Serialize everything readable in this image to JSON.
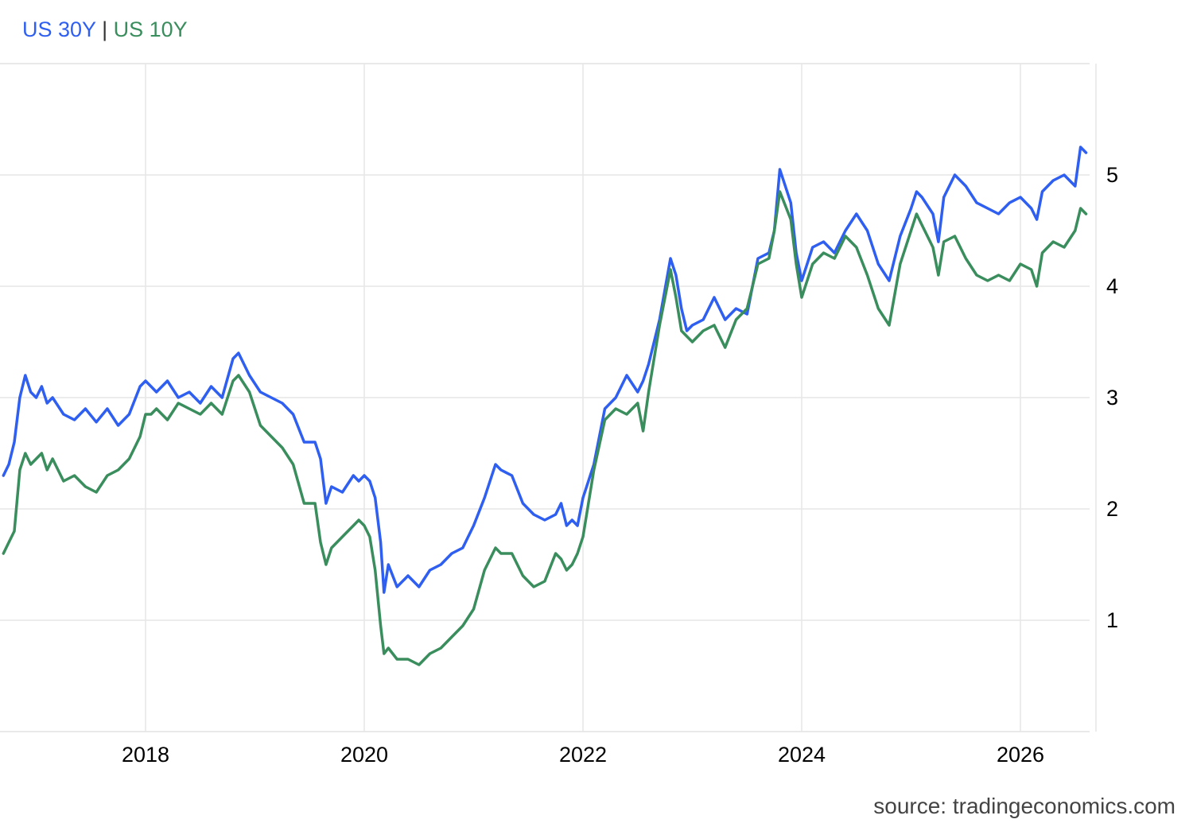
{
  "legend": {
    "series1": "US 30Y",
    "separator": "|",
    "series2": "US 10Y"
  },
  "source": "source: tradingeconomics.com",
  "colors": {
    "us30y": "#2f5ff1",
    "us10y": "#3a8d5c",
    "grid": "#e6e6e6",
    "text": "#000000"
  },
  "chart_data": {
    "type": "line",
    "xlabel": "",
    "ylabel": "",
    "xlim": [
      2016.7,
      2026.7
    ],
    "ylim": [
      0.0,
      6.0
    ],
    "x_ticks": [
      "2018",
      "2020",
      "2022",
      "2024",
      "2026"
    ],
    "y_ticks": [
      "1",
      "2",
      "3",
      "4",
      "5"
    ],
    "grid": true,
    "legend_position": "top-left",
    "series": [
      {
        "name": "US 30Y",
        "x": [
          2016.7,
          2016.75,
          2016.8,
          2016.85,
          2016.9,
          2016.95,
          2017.0,
          2017.05,
          2017.1,
          2017.15,
          2017.25,
          2017.35,
          2017.45,
          2017.55,
          2017.65,
          2017.75,
          2017.85,
          2017.95,
          2018.0,
          2018.05,
          2018.1,
          2018.2,
          2018.3,
          2018.4,
          2018.5,
          2018.6,
          2018.7,
          2018.8,
          2018.85,
          2018.95,
          2019.05,
          2019.15,
          2019.25,
          2019.35,
          2019.45,
          2019.55,
          2019.6,
          2019.65,
          2019.7,
          2019.8,
          2019.9,
          2019.95,
          2020.0,
          2020.05,
          2020.1,
          2020.15,
          2020.18,
          2020.22,
          2020.3,
          2020.4,
          2020.5,
          2020.6,
          2020.7,
          2020.8,
          2020.9,
          2021.0,
          2021.1,
          2021.2,
          2021.25,
          2021.35,
          2021.45,
          2021.55,
          2021.65,
          2021.75,
          2021.8,
          2021.85,
          2021.9,
          2021.95,
          2022.0,
          2022.1,
          2022.2,
          2022.3,
          2022.4,
          2022.5,
          2022.55,
          2022.6,
          2022.7,
          2022.8,
          2022.85,
          2022.9,
          2022.95,
          2023.0,
          2023.1,
          2023.2,
          2023.3,
          2023.4,
          2023.5,
          2023.6,
          2023.7,
          2023.75,
          2023.8,
          2023.9,
          2023.95,
          2024.0,
          2024.1,
          2024.2,
          2024.3,
          2024.4,
          2024.5,
          2024.6,
          2024.7,
          2024.8,
          2024.9,
          2025.0,
          2025.05,
          2025.1,
          2025.2,
          2025.25,
          2025.3,
          2025.4,
          2025.5,
          2025.6,
          2025.7,
          2025.8,
          2025.9,
          2026.0,
          2026.1,
          2026.15,
          2026.2,
          2026.3,
          2026.4,
          2026.5,
          2026.55,
          2026.6
        ],
        "values": [
          2.3,
          2.4,
          2.6,
          3.0,
          3.2,
          3.05,
          3.0,
          3.1,
          2.95,
          3.0,
          2.85,
          2.8,
          2.9,
          2.78,
          2.9,
          2.75,
          2.85,
          3.1,
          3.15,
          3.1,
          3.05,
          3.15,
          3.0,
          3.05,
          2.95,
          3.1,
          3.0,
          3.35,
          3.4,
          3.2,
          3.05,
          3.0,
          2.95,
          2.85,
          2.6,
          2.6,
          2.45,
          2.05,
          2.2,
          2.15,
          2.3,
          2.25,
          2.3,
          2.25,
          2.1,
          1.7,
          1.25,
          1.5,
          1.3,
          1.4,
          1.3,
          1.45,
          1.5,
          1.6,
          1.65,
          1.85,
          2.1,
          2.4,
          2.35,
          2.3,
          2.05,
          1.95,
          1.9,
          1.95,
          2.05,
          1.85,
          1.9,
          1.85,
          2.1,
          2.4,
          2.9,
          3.0,
          3.2,
          3.05,
          3.15,
          3.3,
          3.7,
          4.25,
          4.1,
          3.8,
          3.6,
          3.65,
          3.7,
          3.9,
          3.7,
          3.8,
          3.75,
          4.25,
          4.3,
          4.5,
          5.05,
          4.75,
          4.3,
          4.05,
          4.35,
          4.4,
          4.3,
          4.5,
          4.65,
          4.5,
          4.2,
          4.05,
          4.45,
          4.7,
          4.85,
          4.8,
          4.65,
          4.4,
          4.8,
          5.0,
          4.9,
          4.75,
          4.7,
          4.65,
          4.75,
          4.8,
          4.7,
          4.6,
          4.85,
          4.95,
          5.0,
          4.9,
          5.25,
          5.2
        ]
      },
      {
        "name": "US 10Y",
        "x": [
          2016.7,
          2016.75,
          2016.8,
          2016.85,
          2016.9,
          2016.95,
          2017.0,
          2017.05,
          2017.1,
          2017.15,
          2017.25,
          2017.35,
          2017.45,
          2017.55,
          2017.65,
          2017.75,
          2017.85,
          2017.95,
          2018.0,
          2018.05,
          2018.1,
          2018.2,
          2018.3,
          2018.4,
          2018.5,
          2018.6,
          2018.7,
          2018.8,
          2018.85,
          2018.95,
          2019.05,
          2019.15,
          2019.25,
          2019.35,
          2019.45,
          2019.55,
          2019.6,
          2019.65,
          2019.7,
          2019.8,
          2019.9,
          2019.95,
          2020.0,
          2020.05,
          2020.1,
          2020.15,
          2020.18,
          2020.22,
          2020.3,
          2020.4,
          2020.5,
          2020.6,
          2020.7,
          2020.8,
          2020.9,
          2021.0,
          2021.1,
          2021.2,
          2021.25,
          2021.35,
          2021.45,
          2021.55,
          2021.65,
          2021.75,
          2021.8,
          2021.85,
          2021.9,
          2021.95,
          2022.0,
          2022.1,
          2022.2,
          2022.3,
          2022.4,
          2022.5,
          2022.55,
          2022.6,
          2022.7,
          2022.8,
          2022.85,
          2022.9,
          2022.95,
          2023.0,
          2023.1,
          2023.2,
          2023.3,
          2023.4,
          2023.5,
          2023.6,
          2023.7,
          2023.75,
          2023.8,
          2023.9,
          2023.95,
          2024.0,
          2024.1,
          2024.2,
          2024.3,
          2024.4,
          2024.5,
          2024.6,
          2024.7,
          2024.8,
          2024.9,
          2025.0,
          2025.05,
          2025.1,
          2025.2,
          2025.25,
          2025.3,
          2025.4,
          2025.5,
          2025.6,
          2025.7,
          2025.8,
          2025.9,
          2026.0,
          2026.1,
          2026.15,
          2026.2,
          2026.3,
          2026.4,
          2026.5,
          2026.55,
          2026.6
        ],
        "values": [
          1.6,
          1.7,
          1.8,
          2.35,
          2.5,
          2.4,
          2.45,
          2.5,
          2.35,
          2.45,
          2.25,
          2.3,
          2.2,
          2.15,
          2.3,
          2.35,
          2.45,
          2.65,
          2.85,
          2.85,
          2.9,
          2.8,
          2.95,
          2.9,
          2.85,
          2.95,
          2.85,
          3.15,
          3.2,
          3.05,
          2.75,
          2.65,
          2.55,
          2.4,
          2.05,
          2.05,
          1.7,
          1.5,
          1.65,
          1.75,
          1.85,
          1.9,
          1.85,
          1.75,
          1.45,
          0.95,
          0.7,
          0.75,
          0.65,
          0.65,
          0.6,
          0.7,
          0.75,
          0.85,
          0.95,
          1.1,
          1.45,
          1.65,
          1.6,
          1.6,
          1.4,
          1.3,
          1.35,
          1.6,
          1.55,
          1.45,
          1.5,
          1.6,
          1.75,
          2.35,
          2.8,
          2.9,
          2.85,
          2.95,
          2.7,
          3.05,
          3.65,
          4.15,
          3.9,
          3.6,
          3.55,
          3.5,
          3.6,
          3.65,
          3.45,
          3.7,
          3.8,
          4.2,
          4.25,
          4.5,
          4.85,
          4.6,
          4.2,
          3.9,
          4.2,
          4.3,
          4.25,
          4.45,
          4.35,
          4.1,
          3.8,
          3.65,
          4.2,
          4.5,
          4.65,
          4.55,
          4.35,
          4.1,
          4.4,
          4.45,
          4.25,
          4.1,
          4.05,
          4.1,
          4.05,
          4.2,
          4.15,
          4.0,
          4.3,
          4.4,
          4.35,
          4.5,
          4.7,
          4.65
        ]
      }
    ]
  }
}
